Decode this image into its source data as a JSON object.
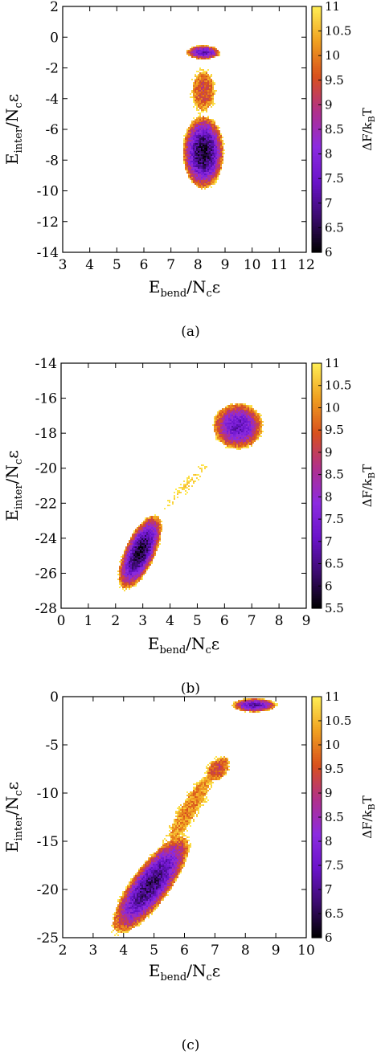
{
  "colormap": [
    "#000000",
    "#3b0b6e",
    "#6a13c9",
    "#8c2be0",
    "#b0308c",
    "#d8501d",
    "#f0a020",
    "#ffee55"
  ],
  "chart_data": [
    {
      "id": "a",
      "type": "heatmap",
      "caption": "(a)",
      "xlabel_base": "E",
      "xlabel_sub": "bend",
      "xlabel_rest": "/N",
      "xlabel_sub2": "c",
      "xlabel_eps": "ε",
      "ylabel_base": "E",
      "ylabel_sub": "inter",
      "ylabel_rest": "/N",
      "ylabel_sub2": "c",
      "ylabel_eps": "ε",
      "colorbar_label_base": "ΔF/k",
      "colorbar_label_sub": "B",
      "colorbar_label_rest": "T",
      "xlim": [
        3,
        12
      ],
      "ylim": [
        -14,
        2
      ],
      "clim": [
        6,
        11
      ],
      "x_ticks": [
        "3",
        "4",
        "5",
        "6",
        "7",
        "8",
        "9",
        "10",
        "11",
        "12"
      ],
      "y_ticks": [
        "2",
        "0",
        "-2",
        "-4",
        "-6",
        "-8",
        "-10",
        "-12",
        "-14"
      ],
      "colorbar_ticks": [
        "11",
        "10.5",
        "10",
        "9.5",
        "9",
        "8.5",
        "8",
        "7.5",
        "7",
        "6.5",
        "6"
      ],
      "x_tick_values": [
        3,
        4,
        5,
        6,
        7,
        8,
        9,
        10,
        11,
        12
      ],
      "y_tick_values": [
        2,
        0,
        -2,
        -4,
        -6,
        -8,
        -10,
        -12,
        -14
      ],
      "colorbar_tick_values": [
        11,
        10.5,
        10,
        9.5,
        9,
        8.5,
        8,
        7.5,
        7,
        6.5,
        6
      ],
      "basins": [
        {
          "x": 8.2,
          "y": -7.5,
          "sx": 0.32,
          "sy": 1.0,
          "rho": 0.0,
          "fmin": 6.3
        },
        {
          "x": 8.2,
          "y": -1.0,
          "sx": 0.3,
          "sy": 0.22,
          "rho": 0.0,
          "fmin": 7.3
        },
        {
          "x": 8.2,
          "y": -3.5,
          "sx": 0.34,
          "sy": 1.1,
          "rho": 0.0,
          "fmin": 9.4
        }
      ]
    },
    {
      "id": "b",
      "type": "heatmap",
      "caption": "(b)",
      "xlabel_base": "E",
      "xlabel_sub": "bend",
      "xlabel_rest": "/N",
      "xlabel_sub2": "c",
      "xlabel_eps": "ε",
      "ylabel_base": "E",
      "ylabel_sub": "inter",
      "ylabel_rest": "/N",
      "ylabel_sub2": "c",
      "ylabel_eps": "ε",
      "colorbar_label_base": "ΔF/k",
      "colorbar_label_sub": "B",
      "colorbar_label_rest": "T",
      "xlim": [
        0,
        9
      ],
      "ylim": [
        -28,
        -14
      ],
      "clim": [
        5.5,
        11
      ],
      "x_ticks": [
        "0",
        "1",
        "2",
        "3",
        "4",
        "5",
        "6",
        "7",
        "8",
        "9"
      ],
      "y_ticks": [
        "-14",
        "-16",
        "-18",
        "-20",
        "-22",
        "-24",
        "-26",
        "-28"
      ],
      "colorbar_ticks": [
        "11",
        "10.5",
        "10",
        "9.5",
        "9",
        "8.5",
        "8",
        "7.5",
        "7",
        "6.5",
        "6",
        "5.5"
      ],
      "x_tick_values": [
        0,
        1,
        2,
        3,
        4,
        5,
        6,
        7,
        8,
        9
      ],
      "y_tick_values": [
        -14,
        -16,
        -18,
        -20,
        -22,
        -24,
        -26,
        -28
      ],
      "colorbar_tick_values": [
        11,
        10.5,
        10,
        9.5,
        9,
        8.5,
        8,
        7.5,
        7,
        6.5,
        6,
        5.5
      ],
      "basins": [
        {
          "x": 2.9,
          "y": -24.8,
          "sx": 0.32,
          "sy": 0.85,
          "rho": 0.65,
          "fmin": 5.8
        },
        {
          "x": 6.5,
          "y": -17.6,
          "sx": 0.42,
          "sy": 0.6,
          "rho": 0.0,
          "fmin": 7.0
        },
        {
          "x": 4.6,
          "y": -21.0,
          "sx": 1.0,
          "sy": 1.7,
          "rho": 0.95,
          "fmin": 10.4
        }
      ]
    },
    {
      "id": "c",
      "type": "heatmap",
      "caption": "(c)",
      "xlabel_base": "E",
      "xlabel_sub": "bend",
      "xlabel_rest": "/N",
      "xlabel_sub2": "c",
      "xlabel_eps": "ε",
      "ylabel_base": "E",
      "ylabel_sub": "inter",
      "ylabel_rest": "/N",
      "ylabel_sub2": "c",
      "ylabel_eps": "ε",
      "colorbar_label_base": "ΔF/k",
      "colorbar_label_sub": "B",
      "colorbar_label_rest": "T",
      "xlim": [
        2,
        10
      ],
      "ylim": [
        -25,
        0
      ],
      "clim": [
        6,
        11
      ],
      "x_ticks": [
        "2",
        "3",
        "4",
        "5",
        "6",
        "7",
        "8",
        "9",
        "10"
      ],
      "y_ticks": [
        "0",
        "-5",
        "-10",
        "-15",
        "-20",
        "-25"
      ],
      "colorbar_ticks": [
        "11",
        "10.5",
        "10",
        "9.5",
        "9",
        "8.5",
        "8",
        "7.5",
        "7",
        "6.5",
        "6"
      ],
      "x_tick_values": [
        2,
        3,
        4,
        5,
        6,
        7,
        8,
        9,
        10
      ],
      "y_tick_values": [
        0,
        -5,
        -10,
        -15,
        -20,
        -25
      ],
      "colorbar_tick_values": [
        11,
        10.5,
        10,
        9.5,
        9,
        8.5,
        8,
        7.5,
        7,
        6.5,
        6
      ],
      "basins": [
        {
          "x": 4.9,
          "y": -19.5,
          "sx": 0.55,
          "sy": 2.2,
          "rho": 0.8,
          "fmin": 6.6
        },
        {
          "x": 8.3,
          "y": -0.9,
          "sx": 0.35,
          "sy": 0.35,
          "rho": 0.0,
          "fmin": 7.3
        },
        {
          "x": 7.1,
          "y": -7.5,
          "sx": 0.3,
          "sy": 1.0,
          "rho": 0.4,
          "fmin": 9.3
        },
        {
          "x": 6.2,
          "y": -11.5,
          "sx": 0.9,
          "sy": 4.5,
          "rho": 0.9,
          "fmin": 10.0
        }
      ]
    }
  ]
}
